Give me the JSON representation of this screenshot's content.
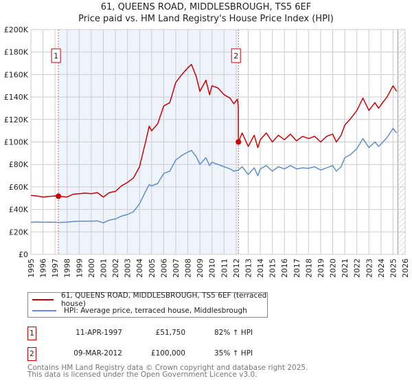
{
  "title": {
    "line1": "61, QUEENS ROAD, MIDDLESBROUGH, TS5 6EF",
    "line2": "Price paid vs. HM Land Registry's House Price Index (HPI)"
  },
  "colors": {
    "property": "#cc0000",
    "hpi": "#5b8fd1",
    "shade": "#eef3fc",
    "grid": "#cccccc"
  },
  "chart_data": {
    "type": "line",
    "xlim": [
      1995,
      2026
    ],
    "ylim": [
      0,
      200000
    ],
    "x_ticks": [
      "1995",
      "1996",
      "1997",
      "1998",
      "1999",
      "2000",
      "2001",
      "2002",
      "2003",
      "2004",
      "2005",
      "2006",
      "2007",
      "2008",
      "2009",
      "2010",
      "2011",
      "2012",
      "2013",
      "2014",
      "2015",
      "2016",
      "2017",
      "2018",
      "2019",
      "2020",
      "2021",
      "2022",
      "2023",
      "2024",
      "2025",
      "2026"
    ],
    "y_ticks": [
      {
        "v": 0,
        "label": "£0"
      },
      {
        "v": 20000,
        "label": "£20K"
      },
      {
        "v": 40000,
        "label": "£40K"
      },
      {
        "v": 60000,
        "label": "£60K"
      },
      {
        "v": 80000,
        "label": "£80K"
      },
      {
        "v": 100000,
        "label": "£100K"
      },
      {
        "v": 120000,
        "label": "£120K"
      },
      {
        "v": 140000,
        "label": "£140K"
      },
      {
        "v": 160000,
        "label": "£160K"
      },
      {
        "v": 180000,
        "label": "£180K"
      },
      {
        "v": 200000,
        "label": "£200K"
      }
    ],
    "series": [
      {
        "name": "61, QUEENS ROAD, MIDDLESBROUGH, TS5 6EF (terraced house)",
        "color": "#cc0000",
        "points": [
          [
            1995,
            52500
          ],
          [
            1995.5,
            52000
          ],
          [
            1996,
            51000
          ],
          [
            1996.5,
            51500
          ],
          [
            1997,
            52000
          ],
          [
            1997.28,
            51750
          ],
          [
            1998,
            51000
          ],
          [
            1998.5,
            53500
          ],
          [
            1999,
            54000
          ],
          [
            1999.5,
            54500
          ],
          [
            2000,
            54000
          ],
          [
            2000.5,
            55000
          ],
          [
            2001,
            51000
          ],
          [
            2001.5,
            55000
          ],
          [
            2002,
            56000
          ],
          [
            2002.5,
            61000
          ],
          [
            2003,
            64000
          ],
          [
            2003.5,
            68000
          ],
          [
            2004,
            78000
          ],
          [
            2004.5,
            100000
          ],
          [
            2004.8,
            114000
          ],
          [
            2005,
            110000
          ],
          [
            2005.5,
            116000
          ],
          [
            2006,
            132000
          ],
          [
            2006.5,
            135000
          ],
          [
            2007,
            153000
          ],
          [
            2007.5,
            160000
          ],
          [
            2008,
            166000
          ],
          [
            2008.3,
            169000
          ],
          [
            2008.7,
            158000
          ],
          [
            2009,
            145000
          ],
          [
            2009.5,
            155000
          ],
          [
            2009.8,
            142000
          ],
          [
            2010,
            150000
          ],
          [
            2010.5,
            148000
          ],
          [
            2011,
            142000
          ],
          [
            2011.5,
            139000
          ],
          [
            2011.8,
            134000
          ],
          [
            2012.1,
            138000
          ],
          [
            2012.18,
            132000
          ],
          [
            2012.19,
            100000
          ],
          [
            2012.5,
            108000
          ],
          [
            2013,
            96000
          ],
          [
            2013.5,
            106000
          ],
          [
            2013.8,
            95000
          ],
          [
            2014,
            102000
          ],
          [
            2014.5,
            108000
          ],
          [
            2015,
            100000
          ],
          [
            2015.5,
            106000
          ],
          [
            2016,
            102000
          ],
          [
            2016.5,
            107000
          ],
          [
            2017,
            101000
          ],
          [
            2017.5,
            105000
          ],
          [
            2018,
            103000
          ],
          [
            2018.5,
            105000
          ],
          [
            2019,
            100000
          ],
          [
            2019.5,
            105000
          ],
          [
            2020,
            107000
          ],
          [
            2020.3,
            100000
          ],
          [
            2020.7,
            106000
          ],
          [
            2021,
            115000
          ],
          [
            2021.5,
            121000
          ],
          [
            2022,
            128000
          ],
          [
            2022.5,
            139000
          ],
          [
            2023,
            128000
          ],
          [
            2023.5,
            135000
          ],
          [
            2023.8,
            130000
          ],
          [
            2024,
            133000
          ],
          [
            2024.5,
            140000
          ],
          [
            2025,
            150000
          ],
          [
            2025.3,
            145000
          ]
        ]
      },
      {
        "name": "HPI: Average price, terraced house, Middlesbrough",
        "color": "#5b8fd1",
        "points": [
          [
            1995,
            28500
          ],
          [
            1995.5,
            28800
          ],
          [
            1996,
            28500
          ],
          [
            1996.5,
            28700
          ],
          [
            1997,
            28600
          ],
          [
            1997.28,
            28400
          ],
          [
            1998,
            28700
          ],
          [
            1998.5,
            29200
          ],
          [
            1999,
            29500
          ],
          [
            1999.5,
            29600
          ],
          [
            2000,
            29500
          ],
          [
            2000.5,
            29800
          ],
          [
            2001,
            28000
          ],
          [
            2001.5,
            30500
          ],
          [
            2002,
            31500
          ],
          [
            2002.5,
            34000
          ],
          [
            2003,
            35500
          ],
          [
            2003.5,
            38000
          ],
          [
            2004,
            45000
          ],
          [
            2004.5,
            56000
          ],
          [
            2004.8,
            62000
          ],
          [
            2005,
            61000
          ],
          [
            2005.5,
            63000
          ],
          [
            2006,
            72000
          ],
          [
            2006.5,
            74000
          ],
          [
            2007,
            84000
          ],
          [
            2007.5,
            88000
          ],
          [
            2008,
            91000
          ],
          [
            2008.3,
            92500
          ],
          [
            2008.7,
            87000
          ],
          [
            2009,
            80000
          ],
          [
            2009.5,
            86000
          ],
          [
            2009.8,
            79000
          ],
          [
            2010,
            82000
          ],
          [
            2010.5,
            80000
          ],
          [
            2011,
            78000
          ],
          [
            2011.5,
            76000
          ],
          [
            2011.8,
            74000
          ],
          [
            2012.19,
            75000
          ],
          [
            2012.5,
            78000
          ],
          [
            2013,
            71000
          ],
          [
            2013.5,
            77000
          ],
          [
            2013.8,
            70000
          ],
          [
            2014,
            76000
          ],
          [
            2014.5,
            79000
          ],
          [
            2015,
            74000
          ],
          [
            2015.5,
            78000
          ],
          [
            2016,
            76000
          ],
          [
            2016.5,
            79000
          ],
          [
            2017,
            76000
          ],
          [
            2017.5,
            77000
          ],
          [
            2018,
            76500
          ],
          [
            2018.5,
            78000
          ],
          [
            2019,
            75000
          ],
          [
            2019.5,
            77000
          ],
          [
            2020,
            79000
          ],
          [
            2020.3,
            74000
          ],
          [
            2020.7,
            78000
          ],
          [
            2021,
            86000
          ],
          [
            2021.5,
            89000
          ],
          [
            2022,
            94000
          ],
          [
            2022.5,
            103000
          ],
          [
            2023,
            95000
          ],
          [
            2023.5,
            100000
          ],
          [
            2023.8,
            96000
          ],
          [
            2024,
            98000
          ],
          [
            2024.5,
            104000
          ],
          [
            2025,
            112000
          ],
          [
            2025.3,
            108000
          ]
        ]
      }
    ],
    "sales": [
      {
        "id": "1",
        "x": 1997.28,
        "y": 51750
      },
      {
        "id": "2",
        "x": 2012.19,
        "y": 100000
      }
    ],
    "forecast_from": 2025.4
  },
  "legend": {
    "items": [
      {
        "label": "61, QUEENS ROAD, MIDDLESBROUGH, TS5 6EF (terraced house)"
      },
      {
        "label": "HPI: Average price, terraced house, Middlesbrough"
      }
    ]
  },
  "transactions": [
    {
      "id": "1",
      "date": "11-APR-1997",
      "price": "£51,750",
      "hpi": "82% ↑ HPI"
    },
    {
      "id": "2",
      "date": "09-MAR-2012",
      "price": "£100,000",
      "hpi": "35% ↑ HPI"
    }
  ],
  "footer": {
    "line1": "Contains HM Land Registry data © Crown copyright and database right 2025.",
    "line2": "This data is licensed under the Open Government Licence v3.0."
  }
}
